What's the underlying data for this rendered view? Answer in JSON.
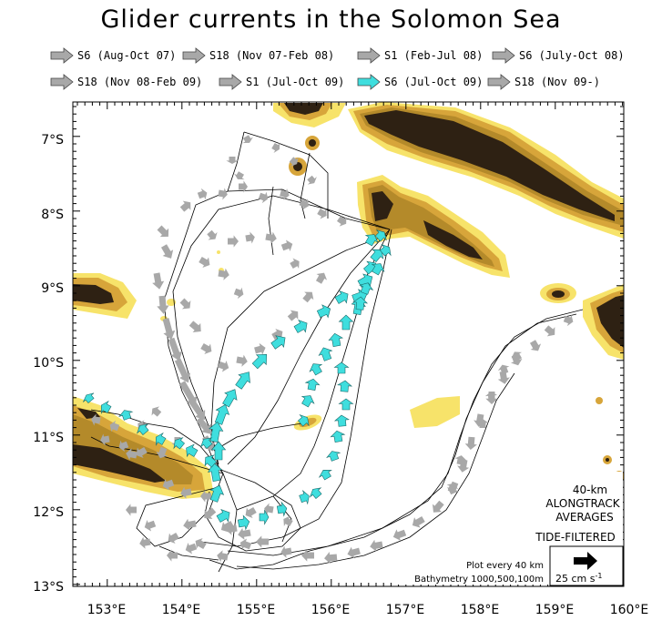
{
  "title": "Glider currents in the Solomon Sea",
  "legend": [
    {
      "label": "S6 (Aug-Oct 07)",
      "color": "#a8a8a8"
    },
    {
      "label": "S18 (Nov 07-Feb 08)",
      "color": "#a8a8a8"
    },
    {
      "label": "S1 (Feb-Jul 08)",
      "color": "#a8a8a8"
    },
    {
      "label": "S6 (July-Oct 08)",
      "color": "#a8a8a8"
    },
    {
      "label": "S18 (Nov 08-Feb 09)",
      "color": "#a8a8a8"
    },
    {
      "label": "S1 (Jul-Oct 09)",
      "color": "#a8a8a8"
    },
    {
      "label": "S6 (Jul-Oct 09)",
      "color": "#3fdede"
    },
    {
      "label": "S18 (Nov 09-)",
      "color": "#a8a8a8"
    }
  ],
  "lat_labels": [
    "7°S",
    "8°S",
    "9°S",
    "10°S",
    "11°S",
    "12°S",
    "13°S"
  ],
  "lon_labels": [
    "153°E",
    "154°E",
    "155°E",
    "156°E",
    "157°E",
    "158°E",
    "159°E",
    "160°E"
  ],
  "info_box": {
    "line1": "40-km",
    "line2": "ALONGTRACK",
    "line3": "AVERAGES",
    "line4": "TIDE-FILTERED"
  },
  "scale_box": {
    "line1": "Plot every 40 km",
    "line2": "Bathymetry 1000,500,100m",
    "scale_label": "25 cm s",
    "scale_exp": "-1"
  },
  "colors": {
    "depth_100": "#f7e36a",
    "depth_500": "#d7a53a",
    "depth_1000": "#b48a2a",
    "land": "#2e2113",
    "arrow_gray": "#a8a8a8",
    "arrow_cyan": "#3fdede"
  }
}
